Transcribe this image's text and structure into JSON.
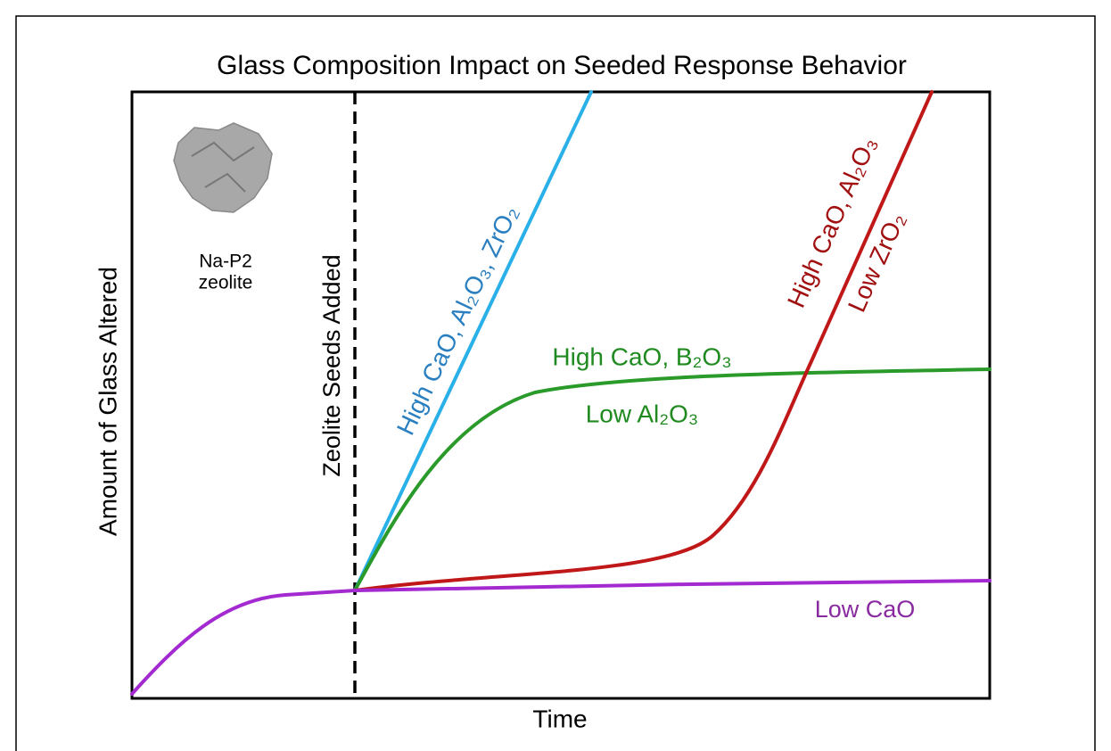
{
  "title": "Glass Composition Impact on Seeded Response Behavior",
  "axes": {
    "x_label": "Time",
    "y_label": "Amount of Glass Altered"
  },
  "annotations": {
    "seed_line": "Zeolite Seeds Added",
    "zeolite": [
      "Na-P2",
      "zeolite"
    ]
  },
  "curves": [
    {
      "label": [
        "High CaO, Al₂O₃, ZrO₂"
      ]
    },
    {
      "label": [
        "High CaO, B₂O₃",
        "Low Al₂O₃"
      ]
    },
    {
      "label": [
        "High CaO, Al₂O₃",
        "Low ZrO₂"
      ]
    },
    {
      "label": [
        "Low CaO"
      ]
    }
  ]
}
